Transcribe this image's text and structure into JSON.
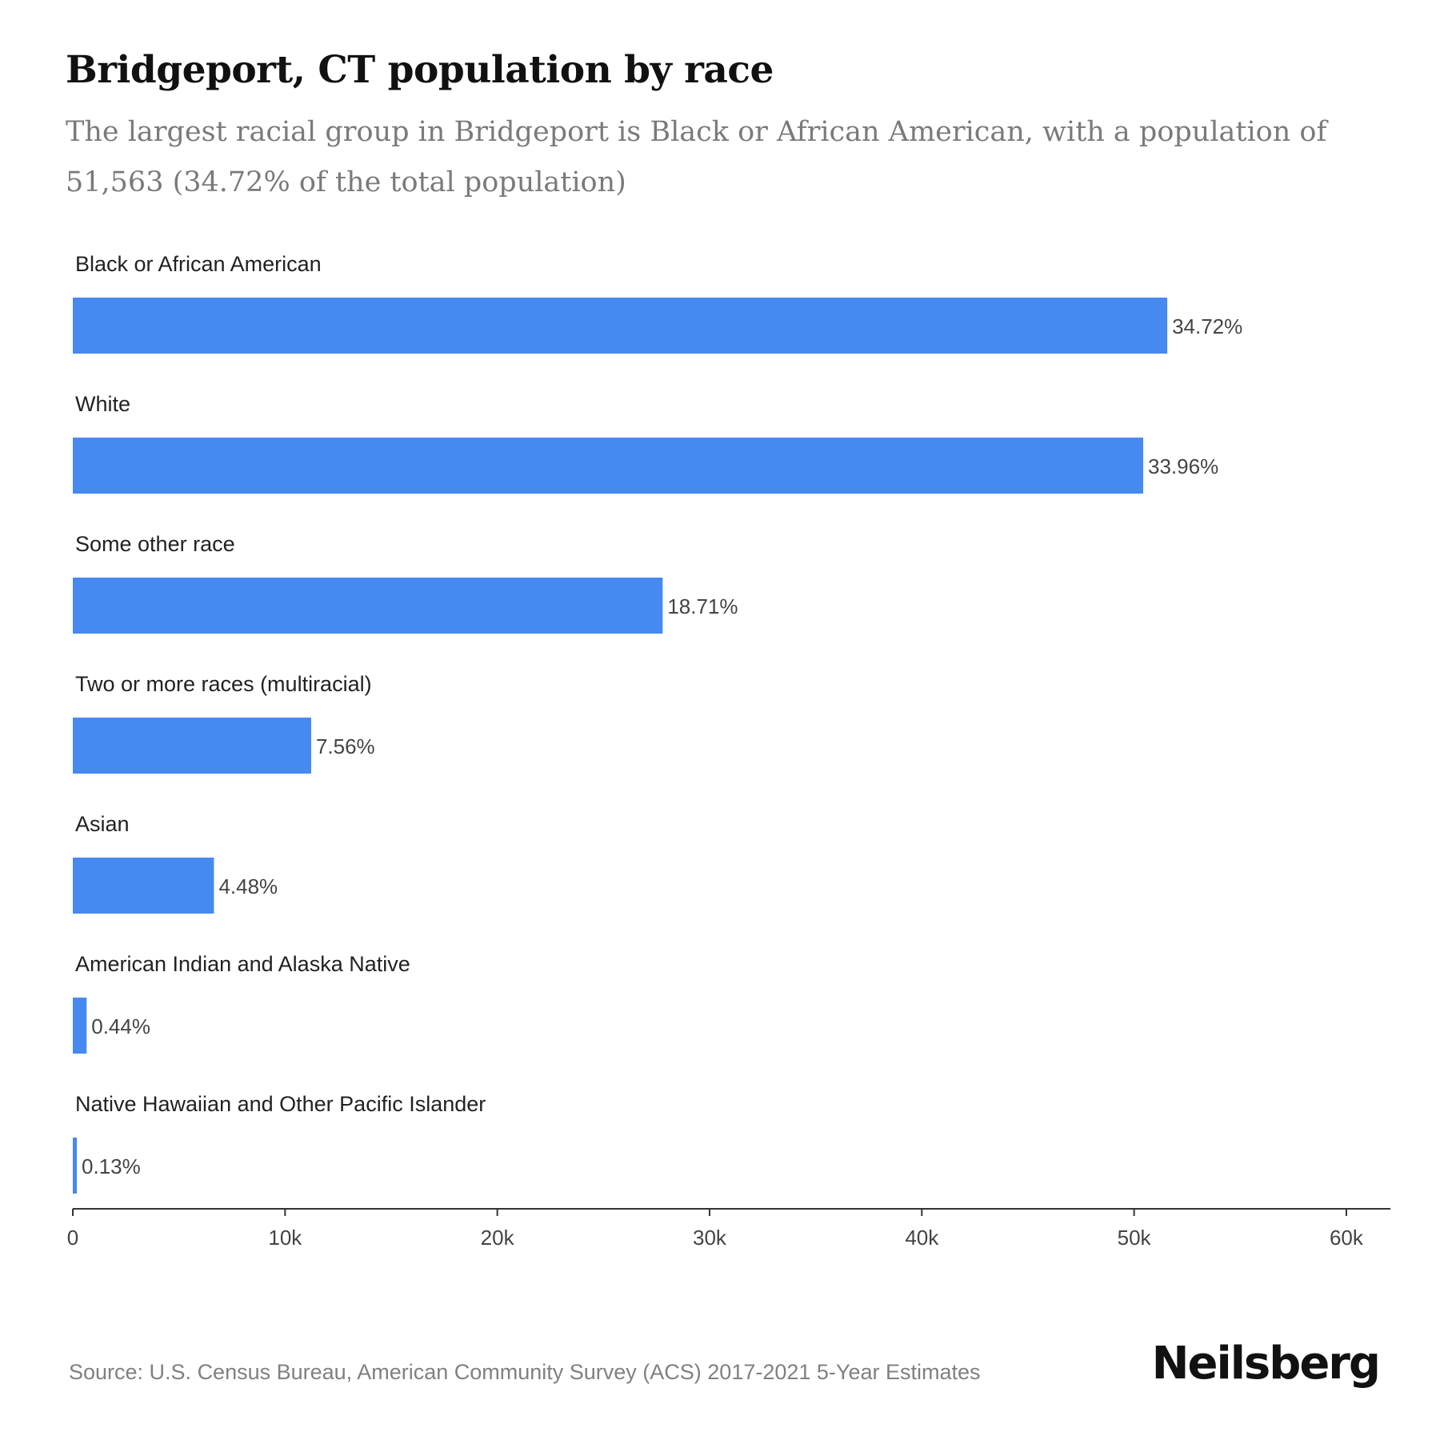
{
  "title": "Bridgeport, CT population by race",
  "subtitle": "The largest racial group in Bridgeport is Black or African American, with a population of 51,563 (34.72% of the total population)",
  "source": "Source: U.S. Census Bureau, American Community Survey (ACS) 2017-2021 5-Year Estimates",
  "brand": "Neilsberg",
  "colors": {
    "bar": "#4689f1",
    "axis": "#333333",
    "label": "#222222",
    "value_label": "#444444",
    "title": "#111111",
    "subtitle": "#7a7a7a",
    "source": "#808080"
  },
  "chart_data": {
    "type": "bar",
    "orientation": "horizontal",
    "categories": [
      "Black or African American",
      "White",
      "Some other race",
      "Two or more races (multiracial)",
      "Asian",
      "American Indian and Alaska Native",
      "Native Hawaiian and Other Pacific Islander"
    ],
    "values": [
      51563,
      50430,
      27790,
      11230,
      6650,
      650,
      190
    ],
    "value_labels": [
      "34.72%",
      "33.96%",
      "18.71%",
      "7.56%",
      "4.48%",
      "0.44%",
      "0.13%"
    ],
    "xlim": [
      0,
      62000
    ],
    "x_ticks": [
      0,
      10000,
      20000,
      30000,
      40000,
      50000,
      60000
    ],
    "x_tick_labels": [
      "0",
      "10k",
      "20k",
      "30k",
      "40k",
      "50k",
      "60k"
    ],
    "grid": false,
    "legend": "none"
  }
}
